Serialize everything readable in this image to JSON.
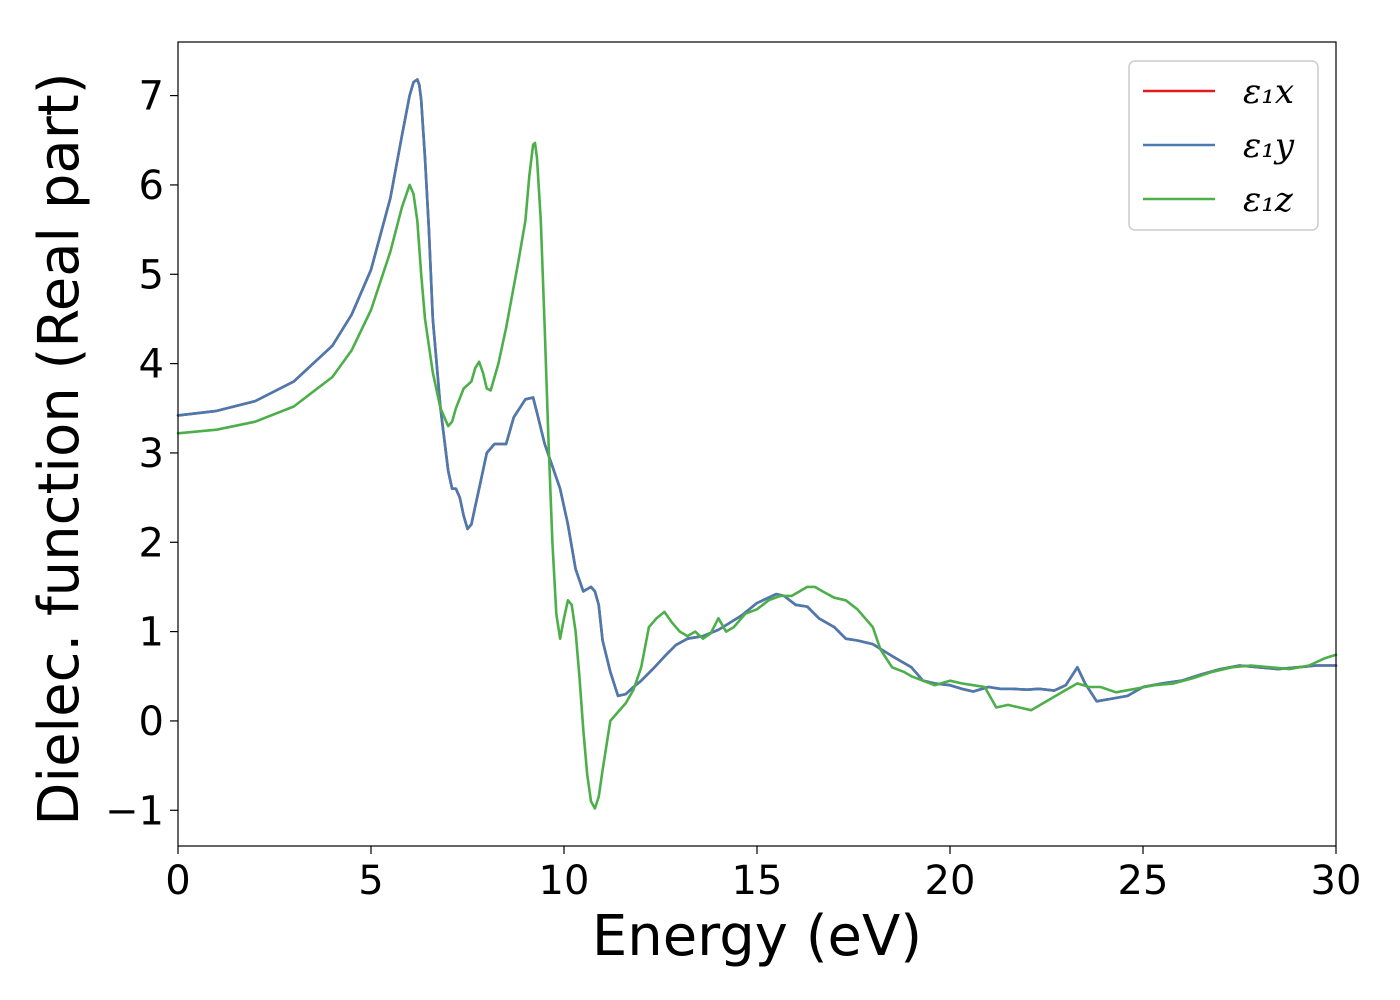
{
  "chart_data": {
    "type": "line",
    "xlabel": "Energy (eV)",
    "ylabel": "Dielec. function (Real part)",
    "xlim": [
      0,
      30
    ],
    "ylim": [
      -1.4,
      7.6
    ],
    "xticks": [
      0,
      5,
      10,
      15,
      20,
      25,
      30
    ],
    "xtick_labels": [
      "0",
      "5",
      "10",
      "15",
      "20",
      "25",
      "30"
    ],
    "yticks": [
      -1,
      0,
      1,
      2,
      3,
      4,
      5,
      6,
      7
    ],
    "ytick_labels": [
      "−1",
      "0",
      "1",
      "2",
      "3",
      "4",
      "5",
      "6",
      "7"
    ],
    "grid": false,
    "legend_position": "top-right",
    "colors": {
      "x": "#e41a1c",
      "y": "#4a7bb0",
      "z": "#4daf4a"
    },
    "series": [
      {
        "key": "x",
        "name": "ε₁x",
        "color": "#e41a1c",
        "x": [
          0,
          1,
          2,
          3,
          4,
          4.5,
          5,
          5.5,
          5.8,
          6.0,
          6.1,
          6.2,
          6.25,
          6.3,
          6.4,
          6.5,
          6.6,
          6.8,
          7.0,
          7.1,
          7.2,
          7.3,
          7.4,
          7.5,
          7.6,
          7.7,
          7.8,
          8.0,
          8.2,
          8.5,
          8.7,
          9.0,
          9.2,
          9.3,
          9.5,
          9.7,
          9.9,
          10.1,
          10.3,
          10.5,
          10.7,
          10.8,
          10.9,
          11.0,
          11.2,
          11.4,
          11.6,
          11.8,
          12.0,
          12.3,
          12.6,
          12.9,
          13.2,
          13.6,
          14.0,
          14.3,
          14.6,
          15.0,
          15.3,
          15.5,
          15.7,
          16.0,
          16.3,
          16.6,
          17.0,
          17.3,
          17.6,
          18.0,
          18.3,
          18.6,
          19.0,
          19.3,
          19.6,
          20.0,
          20.3,
          20.6,
          21.0,
          21.3,
          21.6,
          22.0,
          22.3,
          22.7,
          23.0,
          23.3,
          23.5,
          23.8,
          24.2,
          24.6,
          25.0,
          25.5,
          26.0,
          26.5,
          27.0,
          27.5,
          28.0,
          28.5,
          29.0,
          29.5,
          30.0
        ],
        "y": [
          3.42,
          3.47,
          3.58,
          3.8,
          4.2,
          4.55,
          5.05,
          5.85,
          6.55,
          7.0,
          7.15,
          7.18,
          7.12,
          6.95,
          6.3,
          5.5,
          4.5,
          3.5,
          2.8,
          2.6,
          2.6,
          2.5,
          2.3,
          2.15,
          2.2,
          2.4,
          2.6,
          3.0,
          3.1,
          3.1,
          3.4,
          3.6,
          3.62,
          3.45,
          3.1,
          2.85,
          2.6,
          2.2,
          1.7,
          1.45,
          1.5,
          1.45,
          1.3,
          0.9,
          0.55,
          0.28,
          0.3,
          0.38,
          0.45,
          0.58,
          0.72,
          0.85,
          0.92,
          0.95,
          1.02,
          1.1,
          1.18,
          1.32,
          1.38,
          1.42,
          1.4,
          1.3,
          1.28,
          1.15,
          1.05,
          0.92,
          0.9,
          0.86,
          0.78,
          0.7,
          0.6,
          0.45,
          0.42,
          0.4,
          0.36,
          0.33,
          0.38,
          0.36,
          0.36,
          0.35,
          0.36,
          0.34,
          0.4,
          0.6,
          0.42,
          0.22,
          0.25,
          0.28,
          0.38,
          0.42,
          0.45,
          0.52,
          0.58,
          0.62,
          0.6,
          0.58,
          0.6,
          0.62,
          0.62
        ]
      },
      {
        "key": "y",
        "name": "ε₁y",
        "color": "#4a7bb0",
        "x": [
          0,
          1,
          2,
          3,
          4,
          4.5,
          5,
          5.5,
          5.8,
          6.0,
          6.1,
          6.2,
          6.25,
          6.3,
          6.4,
          6.5,
          6.6,
          6.8,
          7.0,
          7.1,
          7.2,
          7.3,
          7.4,
          7.5,
          7.6,
          7.7,
          7.8,
          8.0,
          8.2,
          8.5,
          8.7,
          9.0,
          9.2,
          9.3,
          9.5,
          9.7,
          9.9,
          10.1,
          10.3,
          10.5,
          10.7,
          10.8,
          10.9,
          11.0,
          11.2,
          11.4,
          11.6,
          11.8,
          12.0,
          12.3,
          12.6,
          12.9,
          13.2,
          13.6,
          14.0,
          14.3,
          14.6,
          15.0,
          15.3,
          15.5,
          15.7,
          16.0,
          16.3,
          16.6,
          17.0,
          17.3,
          17.6,
          18.0,
          18.3,
          18.6,
          19.0,
          19.3,
          19.6,
          20.0,
          20.3,
          20.6,
          21.0,
          21.3,
          21.6,
          22.0,
          22.3,
          22.7,
          23.0,
          23.3,
          23.5,
          23.8,
          24.2,
          24.6,
          25.0,
          25.5,
          26.0,
          26.5,
          27.0,
          27.5,
          28.0,
          28.5,
          29.0,
          29.5,
          30.0
        ],
        "y": [
          3.42,
          3.47,
          3.58,
          3.8,
          4.2,
          4.55,
          5.05,
          5.85,
          6.55,
          7.0,
          7.15,
          7.18,
          7.12,
          6.95,
          6.3,
          5.5,
          4.5,
          3.5,
          2.8,
          2.6,
          2.6,
          2.5,
          2.3,
          2.15,
          2.2,
          2.4,
          2.6,
          3.0,
          3.1,
          3.1,
          3.4,
          3.6,
          3.62,
          3.45,
          3.1,
          2.85,
          2.6,
          2.2,
          1.7,
          1.45,
          1.5,
          1.45,
          1.3,
          0.9,
          0.55,
          0.28,
          0.3,
          0.38,
          0.45,
          0.58,
          0.72,
          0.85,
          0.92,
          0.95,
          1.02,
          1.1,
          1.18,
          1.32,
          1.38,
          1.42,
          1.4,
          1.3,
          1.28,
          1.15,
          1.05,
          0.92,
          0.9,
          0.86,
          0.78,
          0.7,
          0.6,
          0.45,
          0.42,
          0.4,
          0.36,
          0.33,
          0.38,
          0.36,
          0.36,
          0.35,
          0.36,
          0.34,
          0.4,
          0.6,
          0.42,
          0.22,
          0.25,
          0.28,
          0.38,
          0.42,
          0.45,
          0.52,
          0.58,
          0.62,
          0.6,
          0.58,
          0.6,
          0.62,
          0.62
        ]
      },
      {
        "key": "z",
        "name": "ε₁z",
        "color": "#4daf4a",
        "x": [
          0,
          1,
          2,
          3,
          4,
          4.5,
          5,
          5.5,
          5.8,
          6.0,
          6.1,
          6.2,
          6.3,
          6.4,
          6.5,
          6.6,
          6.8,
          7.0,
          7.1,
          7.2,
          7.4,
          7.6,
          7.7,
          7.8,
          7.9,
          8.0,
          8.1,
          8.3,
          8.5,
          8.8,
          9.0,
          9.1,
          9.2,
          9.25,
          9.3,
          9.4,
          9.5,
          9.6,
          9.7,
          9.8,
          9.9,
          10.0,
          10.1,
          10.2,
          10.3,
          10.4,
          10.5,
          10.6,
          10.7,
          10.8,
          10.9,
          11.0,
          11.2,
          11.4,
          11.6,
          11.8,
          12.0,
          12.2,
          12.4,
          12.6,
          12.8,
          13.0,
          13.2,
          13.4,
          13.6,
          13.8,
          14.0,
          14.2,
          14.4,
          14.7,
          15.0,
          15.3,
          15.6,
          15.9,
          16.1,
          16.3,
          16.5,
          16.7,
          17.0,
          17.3,
          17.6,
          18.0,
          18.2,
          18.5,
          18.8,
          19.0,
          19.3,
          19.6,
          20.0,
          20.3,
          20.6,
          20.9,
          21.2,
          21.5,
          21.8,
          22.1,
          22.5,
          22.9,
          23.3,
          23.6,
          23.9,
          24.3,
          24.8,
          25.3,
          25.8,
          26.3,
          26.8,
          27.3,
          27.8,
          28.3,
          28.8,
          29.3,
          29.7,
          30.0
        ],
        "y": [
          3.22,
          3.26,
          3.35,
          3.52,
          3.85,
          4.15,
          4.6,
          5.25,
          5.75,
          6.0,
          5.9,
          5.6,
          5.0,
          4.5,
          4.2,
          3.9,
          3.5,
          3.3,
          3.35,
          3.5,
          3.72,
          3.8,
          3.95,
          4.02,
          3.9,
          3.72,
          3.7,
          4.0,
          4.4,
          5.1,
          5.6,
          6.1,
          6.45,
          6.47,
          6.3,
          5.6,
          4.4,
          3.1,
          2.0,
          1.2,
          0.92,
          1.15,
          1.35,
          1.3,
          1.0,
          0.5,
          -0.1,
          -0.6,
          -0.9,
          -0.98,
          -0.85,
          -0.55,
          0.0,
          0.1,
          0.2,
          0.35,
          0.6,
          1.05,
          1.15,
          1.22,
          1.1,
          1.0,
          0.95,
          1.0,
          0.92,
          0.98,
          1.15,
          1.0,
          1.05,
          1.2,
          1.25,
          1.35,
          1.4,
          1.4,
          1.45,
          1.5,
          1.5,
          1.45,
          1.38,
          1.35,
          1.25,
          1.05,
          0.8,
          0.6,
          0.55,
          0.5,
          0.45,
          0.4,
          0.45,
          0.42,
          0.4,
          0.38,
          0.15,
          0.18,
          0.15,
          0.12,
          0.22,
          0.32,
          0.42,
          0.38,
          0.38,
          0.32,
          0.36,
          0.4,
          0.42,
          0.48,
          0.55,
          0.6,
          0.62,
          0.6,
          0.58,
          0.62,
          0.7,
          0.74
        ]
      }
    ]
  }
}
